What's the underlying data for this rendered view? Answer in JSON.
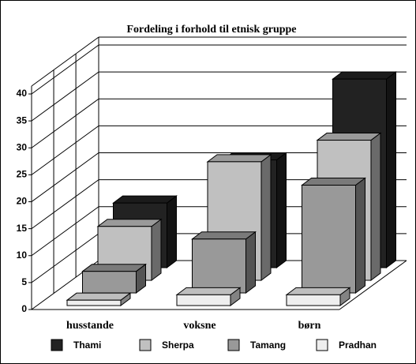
{
  "chart_data": {
    "type": "bar3d",
    "title": "Fordeling i forhold til etnisk gruppe",
    "categories": [
      "husstande",
      "voksne",
      "børn"
    ],
    "series": [
      {
        "name": "Thami",
        "color": "#222222",
        "values": [
          12,
          20,
          35
        ]
      },
      {
        "name": "Sherpa",
        "color": "#c0c0c0",
        "values": [
          10,
          22,
          26
        ]
      },
      {
        "name": "Tamang",
        "color": "#999999",
        "values": [
          4,
          10,
          20
        ]
      },
      {
        "name": "Pradhan",
        "color": "#eeeeee",
        "values": [
          1,
          2,
          2
        ]
      }
    ],
    "ylim": [
      0,
      40
    ],
    "yticks": [
      0,
      5,
      10,
      15,
      20,
      25,
      30,
      35,
      40
    ],
    "grid": true
  }
}
